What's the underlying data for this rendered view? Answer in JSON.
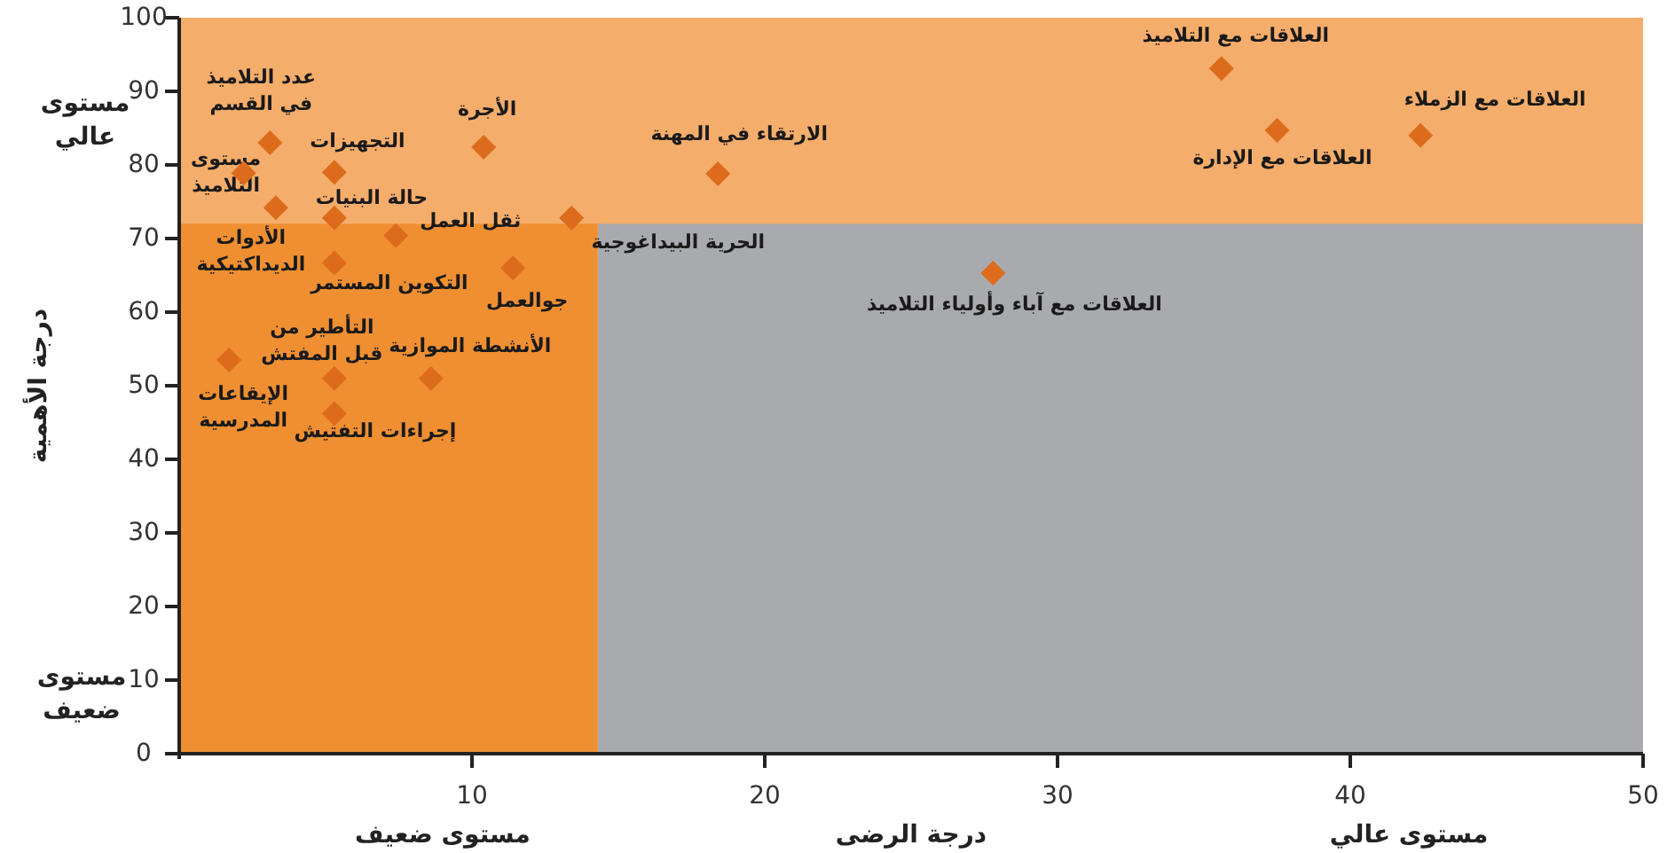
{
  "chart_data": {
    "type": "scatter",
    "xlabel": "درجة الرضى",
    "ylabel": "درجة الأهمية",
    "xlim": [
      0,
      50
    ],
    "ylim": [
      0,
      100
    ],
    "xticks": [
      10,
      20,
      30,
      40,
      50
    ],
    "yticks": [
      0,
      10,
      20,
      30,
      40,
      50,
      60,
      70,
      80,
      90,
      100
    ],
    "grid": false,
    "marker": "diamond",
    "bands": [
      {
        "axis": "x",
        "from": 0,
        "to": 14.3,
        "color": "#ef8f32"
      },
      {
        "axis": "x",
        "from": 14.3,
        "to": 50,
        "color": "#a9aaad"
      },
      {
        "axis": "y",
        "from": 72,
        "to": 100,
        "color": "#f5ad6b"
      }
    ],
    "series": [
      {
        "color": "#dc6c1c",
        "x": [
          3.1,
          2.2,
          5.3,
          10.4,
          3.3,
          5.3,
          7.4,
          13.4,
          5.3,
          11.4,
          1.7,
          5.3,
          8.6,
          5.3,
          18.4,
          35.6,
          37.5,
          42.4,
          27.8
        ],
        "values": [
          83,
          78.9,
          79,
          82.4,
          74.2,
          72.8,
          70.4,
          72.8,
          66.7,
          66,
          53.5,
          51,
          51,
          46.2,
          78.8,
          93.1,
          84.7,
          84,
          65.3
        ]
      }
    ],
    "annotations": [
      {
        "text": "عدد التلاميذ\nفي القسم",
        "x": 3.1,
        "y": 83
      },
      {
        "text": "مستوى\nالتلاميذ",
        "x": 2.2,
        "y": 78.9
      },
      {
        "text": "التجهيزات",
        "x": 5.3,
        "y": 79
      },
      {
        "text": "الأجرة",
        "x": 10.4,
        "y": 82.4
      },
      {
        "text": "الأدوات\nالديداكتيكية",
        "x": 3.3,
        "y": 74.2
      },
      {
        "text": "حالة البنيات",
        "x": 5.3,
        "y": 72.8
      },
      {
        "text": "ثقل العمل",
        "x": 7.4,
        "y": 70.4
      },
      {
        "text": "الحرية البيداغوجية",
        "x": 13.4,
        "y": 72.8
      },
      {
        "text": "التكوين المستمر",
        "x": 5.3,
        "y": 66.7
      },
      {
        "text": "جوالعمل",
        "x": 11.4,
        "y": 66
      },
      {
        "text": "الإيقاعات\nالمدرسية",
        "x": 1.7,
        "y": 53.5
      },
      {
        "text": "التأطير من\nقبل المفتش",
        "x": 5.3,
        "y": 51
      },
      {
        "text": "الأنشطة الموازية",
        "x": 8.6,
        "y": 51
      },
      {
        "text": "إجراءات التفتيش",
        "x": 5.3,
        "y": 46.2
      },
      {
        "text": "الارتقاء في المهنة",
        "x": 18.4,
        "y": 78.8
      },
      {
        "text": "العلاقات مع التلاميذ",
        "x": 35.6,
        "y": 93.1
      },
      {
        "text": "العلاقات مع الإدارة",
        "x": 37.5,
        "y": 84.7
      },
      {
        "text": "العلاقات مع الزملاء",
        "x": 42.4,
        "y": 84
      },
      {
        "text": "العلاقات مع آباء وأولياء التلاميذ",
        "x": 27.8,
        "y": 65.3
      },
      "مستوى\nعالي",
      "مستوى\nضعيف",
      "مستوى ضعيف",
      "مستوى عالي"
    ]
  }
}
